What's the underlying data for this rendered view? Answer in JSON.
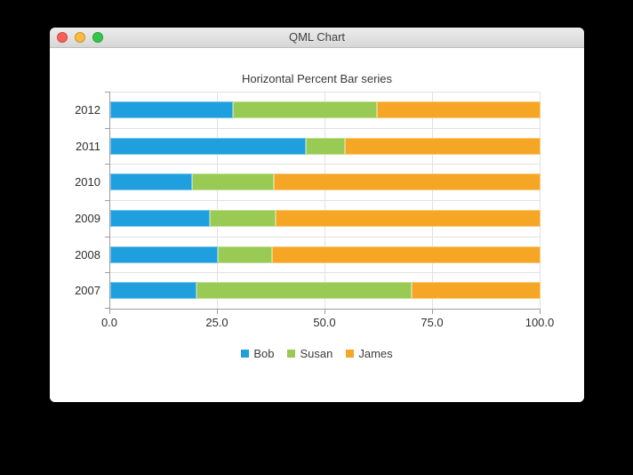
{
  "window": {
    "title": "QML Chart",
    "traffic_lights": {
      "close": "#fb5f57",
      "minimize": "#fdbb40",
      "zoom": "#33c748"
    }
  },
  "chart_data": {
    "type": "bar",
    "orientation": "horizontal",
    "stacking": "percent",
    "title": "Horizontal Percent Bar series",
    "categories": [
      "2012",
      "2011",
      "2010",
      "2009",
      "2008",
      "2007"
    ],
    "series": [
      {
        "name": "Bob",
        "color": "#209fde",
        "values": [
          6,
          5,
          4,
          3,
          2,
          2
        ]
      },
      {
        "name": "Susan",
        "color": "#99ca53",
        "values": [
          7,
          1,
          4,
          2,
          1,
          5
        ]
      },
      {
        "name": "James",
        "color": "#f6a625",
        "values": [
          8,
          5,
          13,
          8,
          5,
          3
        ]
      }
    ],
    "x_axis": {
      "min": 0,
      "max": 100,
      "tick_values": [
        0,
        25,
        50,
        75,
        100
      ],
      "tick_labels": [
        "0.0",
        "25.0",
        "50.0",
        "75.0",
        "100.0"
      ]
    },
    "legend": {
      "position": "bottom",
      "entries": [
        "Bob",
        "Susan",
        "James"
      ]
    },
    "grid": true,
    "plot_background": "#ffffff",
    "axis_line_color": "#9e9e9e",
    "grid_line_color": "#e2e2e2"
  }
}
